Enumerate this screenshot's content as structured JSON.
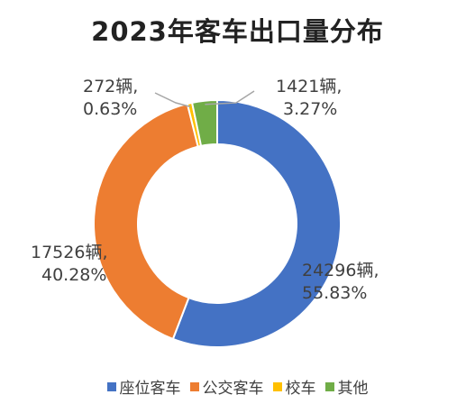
{
  "chart_data": {
    "type": "pie",
    "subtype": "donut",
    "title": "2023年客车出口量分布",
    "categories": [
      "座位客车",
      "公交客车",
      "校车",
      "其他"
    ],
    "values": [
      24296,
      17526,
      272,
      1421
    ],
    "percents": [
      55.83,
      40.28,
      0.63,
      3.27
    ],
    "data_labels": [
      {
        "count": "24296辆,",
        "pct": "55.83%"
      },
      {
        "count": "17526辆,",
        "pct": "40.28%"
      },
      {
        "count": "272辆,",
        "pct": "0.63%"
      },
      {
        "count": "1421辆,",
        "pct": "3.27%"
      }
    ],
    "colors": [
      "#4472C4",
      "#ED7D31",
      "#FFC000",
      "#70AD47"
    ],
    "legend_position": "bottom",
    "start_angle": "top, clockwise"
  }
}
